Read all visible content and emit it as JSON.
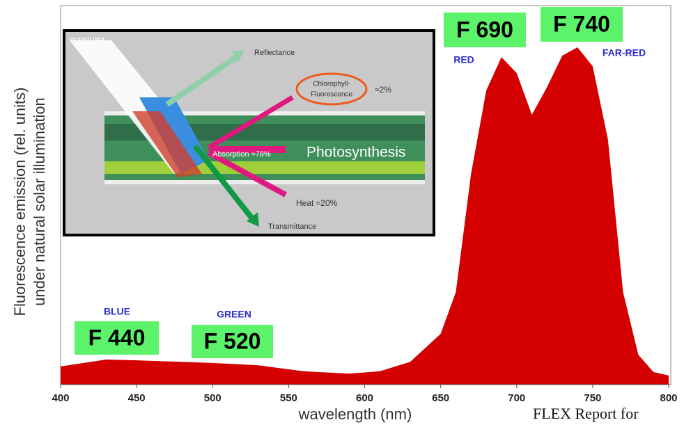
{
  "chart_data": {
    "type": "area",
    "xlabel": "wavelength  (nm)",
    "ylabel": [
      "Fluorescence emission (rel. units)",
      "under natural solar illumination"
    ],
    "x": [
      400,
      430,
      450,
      500,
      530,
      560,
      590,
      610,
      630,
      650,
      660,
      670,
      680,
      690,
      700,
      710,
      720,
      730,
      740,
      750,
      760,
      770,
      780,
      790,
      800
    ],
    "series": [
      {
        "color": "#d40000",
        "values": [
          4.8,
          6.6,
          6.4,
          5.7,
          5.1,
          3.5,
          2.9,
          3.5,
          6,
          13.4,
          24.4,
          55.6,
          77.6,
          86.4,
          82.2,
          71.2,
          78.5,
          86.8,
          89,
          84,
          64.8,
          24.4,
          7.9,
          3.3,
          2.4
        ]
      }
    ],
    "xlim": [
      400,
      800
    ],
    "xticks": [
      400,
      450,
      500,
      550,
      600,
      650,
      700,
      750,
      800
    ],
    "ylim": [
      0,
      100
    ],
    "peak_labels": [
      "F 440",
      "F 520",
      "F 690",
      "F 740"
    ],
    "band_labels": [
      "BLUE",
      "GREEN",
      "RED",
      "FAR-RED"
    ],
    "inset": {
      "incident": "incident light",
      "reflectance": "Reflectance",
      "fluorescence": [
        "Chlorophyll-",
        "Fluorescence"
      ],
      "fluorescence_share": "≈2%",
      "absorption": "Absorption ≈78%",
      "photosynthesis": "Photosynthesis",
      "heat": "Heat ≈20%",
      "transmittance": "Transmittance"
    },
    "footer": "FLEX Report for"
  }
}
